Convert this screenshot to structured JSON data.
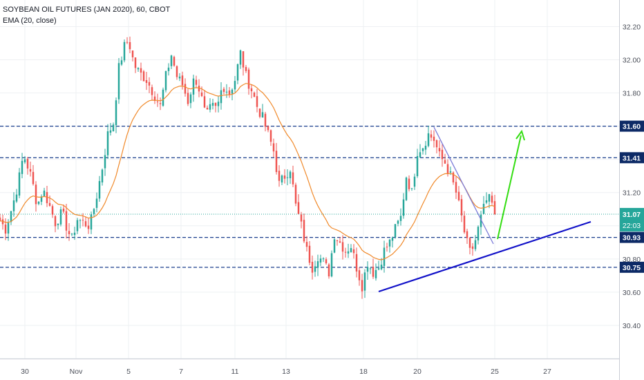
{
  "legend": {
    "symbol_line": "SOYBEAN OIL FUTURES (JAN 2020), 60, CBOT",
    "indicator_line": "EMA (20, close)"
  },
  "colors": {
    "up": "#26a69a",
    "down": "#ef5350",
    "ema": "#f0892a",
    "level_line": "#1a3e8c",
    "trend_line": "#1010c8",
    "down_trend": "#7a7ad8",
    "projection": "#33dd11",
    "current_line": "#26a69a",
    "label_bg": "#0d2a66",
    "price_label_bg": "#26a69a",
    "grid": "#eef0f3",
    "axis_text": "#4a4e58"
  },
  "chart_data": {
    "type": "candlestick",
    "title": "SOYBEAN OIL FUTURES (JAN 2020), 60, CBOT",
    "indicator": "EMA (20, close)",
    "ylim": [
      30.2,
      32.36
    ],
    "y_ticks": [
      "32.20",
      "32.00",
      "31.80",
      "31.20",
      "30.80",
      "30.60",
      "30.40"
    ],
    "x_ticks": [
      "30",
      "Nov",
      "5",
      "7",
      "11",
      "13",
      "18",
      "20",
      "25",
      "27"
    ],
    "horizontal_levels": [
      {
        "value": 31.6,
        "label": "31.60"
      },
      {
        "value": 31.41,
        "label": "31.41"
      },
      {
        "value": 30.93,
        "label": "30.93"
      },
      {
        "value": 30.75,
        "label": "30.75"
      }
    ],
    "current_price": {
      "value": 31.07,
      "label": "31.07",
      "countdown": "22:03"
    },
    "anchors": [
      {
        "x": 0,
        "y": 31.03
      },
      {
        "x": 8,
        "y": 30.98
      },
      {
        "x": 18,
        "y": 31.12
      },
      {
        "x": 26,
        "y": 31.25
      },
      {
        "x": 34,
        "y": 31.43
      },
      {
        "x": 40,
        "y": 31.36
      },
      {
        "x": 46,
        "y": 31.28
      },
      {
        "x": 54,
        "y": 31.12
      },
      {
        "x": 62,
        "y": 31.22
      },
      {
        "x": 70,
        "y": 31.14
      },
      {
        "x": 80,
        "y": 31.02
      },
      {
        "x": 90,
        "y": 31.08
      },
      {
        "x": 98,
        "y": 30.97
      },
      {
        "x": 104,
        "y": 30.92
      },
      {
        "x": 112,
        "y": 31.04
      },
      {
        "x": 120,
        "y": 31.02
      },
      {
        "x": 130,
        "y": 31.0
      },
      {
        "x": 138,
        "y": 31.14
      },
      {
        "x": 148,
        "y": 31.35
      },
      {
        "x": 156,
        "y": 31.55
      },
      {
        "x": 164,
        "y": 31.62
      },
      {
        "x": 172,
        "y": 31.95
      },
      {
        "x": 180,
        "y": 32.08
      },
      {
        "x": 186,
        "y": 32.12
      },
      {
        "x": 194,
        "y": 31.97
      },
      {
        "x": 202,
        "y": 31.92
      },
      {
        "x": 212,
        "y": 31.88
      },
      {
        "x": 222,
        "y": 31.8
      },
      {
        "x": 232,
        "y": 31.72
      },
      {
        "x": 240,
        "y": 31.9
      },
      {
        "x": 248,
        "y": 32.03
      },
      {
        "x": 256,
        "y": 31.9
      },
      {
        "x": 264,
        "y": 31.85
      },
      {
        "x": 272,
        "y": 31.75
      },
      {
        "x": 282,
        "y": 31.9
      },
      {
        "x": 290,
        "y": 31.8
      },
      {
        "x": 298,
        "y": 31.65
      },
      {
        "x": 306,
        "y": 31.72
      },
      {
        "x": 314,
        "y": 31.7
      },
      {
        "x": 322,
        "y": 31.85
      },
      {
        "x": 332,
        "y": 31.8
      },
      {
        "x": 340,
        "y": 31.88
      },
      {
        "x": 348,
        "y": 32.04
      },
      {
        "x": 356,
        "y": 31.9
      },
      {
        "x": 364,
        "y": 31.82
      },
      {
        "x": 372,
        "y": 31.72
      },
      {
        "x": 380,
        "y": 31.65
      },
      {
        "x": 388,
        "y": 31.55
      },
      {
        "x": 396,
        "y": 31.45
      },
      {
        "x": 404,
        "y": 31.25
      },
      {
        "x": 412,
        "y": 31.3
      },
      {
        "x": 420,
        "y": 31.35
      },
      {
        "x": 428,
        "y": 31.12
      },
      {
        "x": 436,
        "y": 31.0
      },
      {
        "x": 444,
        "y": 30.85
      },
      {
        "x": 452,
        "y": 30.75
      },
      {
        "x": 460,
        "y": 30.82
      },
      {
        "x": 468,
        "y": 30.78
      },
      {
        "x": 476,
        "y": 30.72
      },
      {
        "x": 484,
        "y": 30.95
      },
      {
        "x": 492,
        "y": 30.9
      },
      {
        "x": 500,
        "y": 30.85
      },
      {
        "x": 508,
        "y": 30.88
      },
      {
        "x": 516,
        "y": 30.75
      },
      {
        "x": 524,
        "y": 30.64
      },
      {
        "x": 532,
        "y": 30.78
      },
      {
        "x": 540,
        "y": 30.72
      },
      {
        "x": 548,
        "y": 30.75
      },
      {
        "x": 556,
        "y": 30.85
      },
      {
        "x": 564,
        "y": 30.9
      },
      {
        "x": 572,
        "y": 30.98
      },
      {
        "x": 580,
        "y": 31.05
      },
      {
        "x": 588,
        "y": 31.3
      },
      {
        "x": 596,
        "y": 31.2
      },
      {
        "x": 604,
        "y": 31.45
      },
      {
        "x": 612,
        "y": 31.48
      },
      {
        "x": 620,
        "y": 31.55
      },
      {
        "x": 628,
        "y": 31.52
      },
      {
        "x": 636,
        "y": 31.42
      },
      {
        "x": 644,
        "y": 31.38
      },
      {
        "x": 652,
        "y": 31.3
      },
      {
        "x": 660,
        "y": 31.2
      },
      {
        "x": 668,
        "y": 31.05
      },
      {
        "x": 674,
        "y": 30.92
      },
      {
        "x": 680,
        "y": 30.84
      },
      {
        "x": 686,
        "y": 30.88
      },
      {
        "x": 692,
        "y": 30.98
      },
      {
        "x": 698,
        "y": 31.08
      },
      {
        "x": 704,
        "y": 31.15
      },
      {
        "x": 710,
        "y": 31.16
      },
      {
        "x": 716,
        "y": 31.07
      }
    ]
  }
}
